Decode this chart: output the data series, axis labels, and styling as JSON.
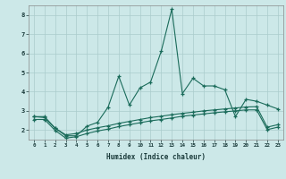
{
  "xlabel": "Humidex (Indice chaleur)",
  "bg_color": "#cce8e8",
  "grid_color": "#aacccc",
  "line_color": "#1a6b5a",
  "ylim": [
    1.5,
    8.5
  ],
  "xlim": [
    -0.5,
    23.5
  ],
  "series1_x": [
    0,
    1,
    2,
    3,
    4,
    5,
    6,
    7,
    8,
    9,
    10,
    11,
    12,
    13,
    14,
    15,
    16,
    17,
    18,
    19,
    20,
    21,
    22,
    23
  ],
  "series1_y": [
    2.7,
    2.7,
    2.1,
    1.7,
    1.7,
    2.2,
    2.4,
    3.2,
    4.8,
    3.3,
    4.2,
    4.5,
    6.1,
    8.3,
    3.9,
    4.7,
    4.3,
    4.3,
    4.1,
    2.7,
    3.6,
    3.5,
    3.3,
    3.1
  ],
  "series2_x": [
    0,
    1,
    2,
    3,
    4,
    5,
    6,
    7,
    8,
    9,
    10,
    11,
    12,
    13,
    14,
    15,
    16,
    17,
    18,
    19,
    20,
    21,
    22,
    23
  ],
  "series2_y": [
    2.7,
    2.65,
    2.1,
    1.75,
    1.82,
    2.0,
    2.12,
    2.22,
    2.35,
    2.45,
    2.55,
    2.65,
    2.72,
    2.8,
    2.87,
    2.93,
    3.0,
    3.05,
    3.1,
    3.15,
    3.2,
    3.22,
    2.15,
    2.28
  ],
  "series3_x": [
    0,
    1,
    2,
    3,
    4,
    5,
    6,
    7,
    8,
    9,
    10,
    11,
    12,
    13,
    14,
    15,
    16,
    17,
    18,
    19,
    20,
    21,
    22,
    23
  ],
  "series3_y": [
    2.55,
    2.55,
    1.98,
    1.58,
    1.65,
    1.82,
    1.95,
    2.05,
    2.18,
    2.28,
    2.38,
    2.48,
    2.55,
    2.63,
    2.72,
    2.78,
    2.84,
    2.9,
    2.95,
    3.0,
    3.05,
    3.05,
    2.02,
    2.15
  ]
}
